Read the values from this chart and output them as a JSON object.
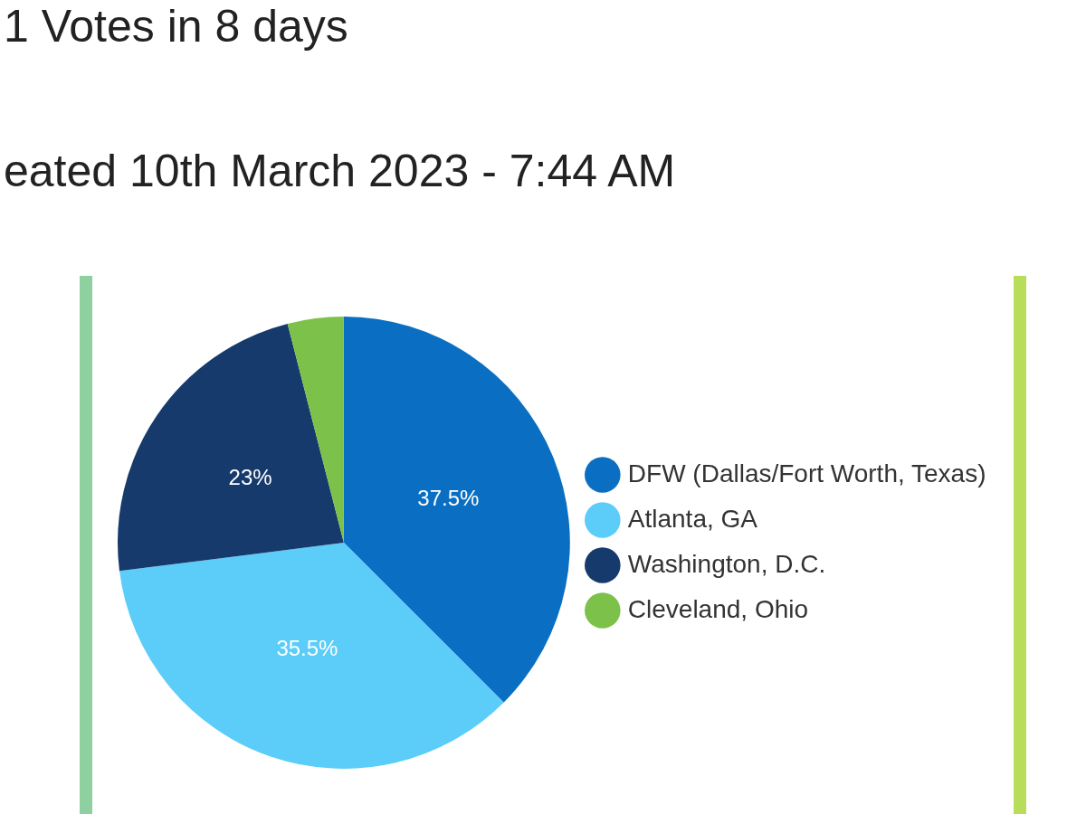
{
  "chart_data": {
    "type": "pie",
    "title": "1 Votes in 8 days",
    "subtitle": "eated 10th March 2023 - 7:44 AM",
    "categories": [
      "DFW (Dallas/Fort Worth, Texas)",
      "Atlanta, GA",
      "Washington, D.C.",
      "Cleveland, Ohio"
    ],
    "values": [
      37.5,
      35.5,
      23,
      4
    ],
    "colors": [
      "#0a6fc2",
      "#5bcdf8",
      "#163a6b",
      "#7cc24a"
    ],
    "value_labels": [
      "37.5%",
      "35.5%",
      "23%",
      null
    ],
    "legend": "right"
  }
}
